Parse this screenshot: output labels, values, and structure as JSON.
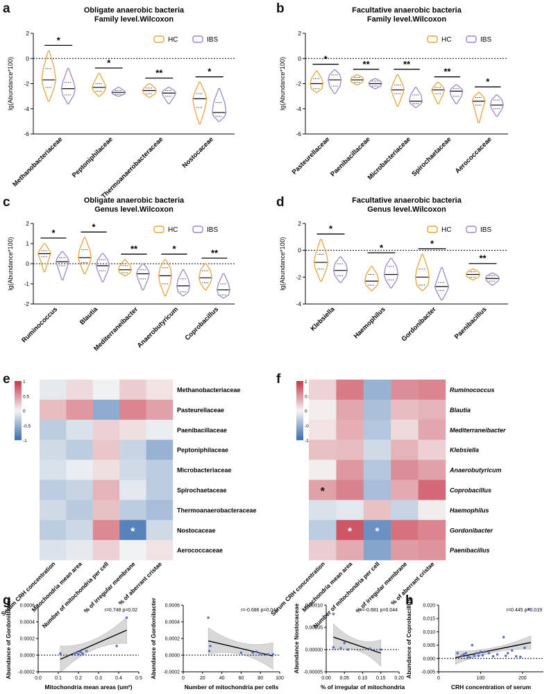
{
  "colors": {
    "hc": "#e8a33d",
    "ibs": "#9b86cf",
    "neg": "#3b6fb0",
    "pos": "#c83a4b",
    "mid": "#f5f5f5",
    "ci": "#cfcfcf",
    "point": "#5a72c8"
  },
  "panel_letters": [
    "a",
    "b",
    "c",
    "d",
    "e",
    "f",
    "g",
    "h"
  ],
  "legend": {
    "hc": "HC",
    "ibs": "IBS"
  },
  "chart_data": [
    {
      "panel": "a",
      "type": "violin",
      "title": "Obligate anaerobic bacteria",
      "subtitle": "Family level.Wilcoxon",
      "ylabel": "lg(Abundance*100)",
      "ylim": [
        -6,
        2
      ],
      "yticks": [
        2,
        0,
        -2,
        -4,
        -6
      ],
      "ref_line": 0,
      "categories": [
        "Methanobacteriaceae",
        "Peptoniphilaceae",
        "Thermoanaerobacteraceae",
        "Nostocaceae"
      ],
      "hc": [
        {
          "min": -3.4,
          "q1": -2.3,
          "median": -1.7,
          "q3": -0.8,
          "max": 0.6
        },
        {
          "min": -3.0,
          "q1": -2.6,
          "median": -2.3,
          "q3": -2.0,
          "max": -1.2
        },
        {
          "min": -3.1,
          "q1": -2.8,
          "median": -2.55,
          "q3": -2.35,
          "max": -2.0
        },
        {
          "min": -5.2,
          "q1": -3.9,
          "median": -3.2,
          "q3": -2.8,
          "max": -1.9
        }
      ],
      "ibs": [
        {
          "min": -3.6,
          "q1": -2.9,
          "median": -2.4,
          "q3": -1.9,
          "max": -0.8
        },
        {
          "min": -3.0,
          "q1": -2.85,
          "median": -2.7,
          "q3": -2.55,
          "max": -2.3
        },
        {
          "min": -3.6,
          "q1": -3.0,
          "median": -2.75,
          "q3": -2.55,
          "max": -2.3
        },
        {
          "min": -5.0,
          "q1": -4.6,
          "median": -4.3,
          "q3": -3.5,
          "max": -2.4
        }
      ],
      "significance": [
        "*",
        "*",
        "**",
        "*"
      ]
    },
    {
      "panel": "b",
      "type": "violin",
      "title": "Facultative anaerobic bacteria",
      "subtitle": "Family level.Wilcoxon",
      "ylabel": "lg(Abundance*100)",
      "ylim": [
        -6,
        2
      ],
      "yticks": [
        2,
        0,
        -2,
        -4,
        -6
      ],
      "ref_line": 0,
      "categories": [
        "Pasteurellaceae",
        "Paenibacillaceae",
        "Microbacteriaceae",
        "Spirochaetaceae",
        "Aerococcaceae"
      ],
      "hc": [
        {
          "min": -2.7,
          "q1": -2.4,
          "median": -2.0,
          "q3": -1.6,
          "max": -1.0
        },
        {
          "min": -2.1,
          "q1": -1.9,
          "median": -1.7,
          "q3": -1.5,
          "max": -1.3
        },
        {
          "min": -3.8,
          "q1": -2.8,
          "median": -2.5,
          "q3": -2.1,
          "max": -1.3
        },
        {
          "min": -3.6,
          "q1": -2.8,
          "median": -2.5,
          "q3": -2.3,
          "max": -1.9
        },
        {
          "min": -5.1,
          "q1": -3.7,
          "median": -3.4,
          "q3": -3.1,
          "max": -2.7
        }
      ],
      "ibs": [
        {
          "min": -2.8,
          "q1": -2.2,
          "median": -1.7,
          "q3": -1.3,
          "max": -0.9
        },
        {
          "min": -2.4,
          "q1": -2.2,
          "median": -2.0,
          "q3": -1.8,
          "max": -1.6
        },
        {
          "min": -3.9,
          "q1": -3.6,
          "median": -3.4,
          "q3": -2.9,
          "max": -2.3
        },
        {
          "min": -3.6,
          "q1": -3.0,
          "median": -2.6,
          "q3": -2.4,
          "max": -2.1
        },
        {
          "min": -4.6,
          "q1": -4.0,
          "median": -3.7,
          "q3": -3.3,
          "max": -2.9
        }
      ],
      "significance": [
        "*",
        "**",
        "**",
        "**",
        "*"
      ]
    },
    {
      "panel": "c",
      "type": "violin",
      "title": "Obligate anaerobic bacteria",
      "subtitle": "Genus level.Wilcoxon",
      "ylabel": "lg(Abundance*100)",
      "ylim": [
        -2,
        2
      ],
      "yticks": [
        2,
        1,
        0,
        -1,
        -2
      ],
      "ref_line": 0,
      "categories": [
        "Ruminococcus",
        "Blautia",
        "Mediterraneibacter",
        "Anaerobutyricum",
        "Coprobacillus"
      ],
      "hc": [
        {
          "min": -0.4,
          "q1": 0.35,
          "median": 0.5,
          "q3": 0.65,
          "max": 1.0
        },
        {
          "min": -0.5,
          "q1": 0.05,
          "median": 0.3,
          "q3": 0.7,
          "max": 1.3
        },
        {
          "min": -0.6,
          "q1": -0.45,
          "median": -0.3,
          "q3": -0.1,
          "max": 0.2
        },
        {
          "min": -1.6,
          "q1": -1.0,
          "median": -0.6,
          "q3": -0.2,
          "max": 0.2
        },
        {
          "min": -1.3,
          "q1": -0.95,
          "median": -0.7,
          "q3": -0.35,
          "max": 0.0
        }
      ],
      "ibs": [
        {
          "min": -0.8,
          "q1": -0.1,
          "median": 0.1,
          "q3": 0.3,
          "max": 0.6
        },
        {
          "min": -0.9,
          "q1": -0.35,
          "median": -0.1,
          "q3": 0.2,
          "max": 0.5
        },
        {
          "min": -1.3,
          "q1": -0.75,
          "median": -0.5,
          "q3": -0.3,
          "max": 0.0
        },
        {
          "min": -1.6,
          "q1": -1.4,
          "median": -1.1,
          "q3": -0.75,
          "max": -0.3
        },
        {
          "min": -1.7,
          "q1": -1.55,
          "median": -1.3,
          "q3": -1.0,
          "max": -0.5
        }
      ],
      "significance": [
        "*",
        "*",
        "**",
        "*",
        "**"
      ]
    },
    {
      "panel": "d",
      "type": "violin",
      "title": "Facultative anaerobic bacteria",
      "subtitle": "Genus level.Wilcoxon",
      "ylabel": "lg(Abundance*100)",
      "ylim": [
        -4,
        2
      ],
      "yticks": [
        2,
        0,
        -2,
        -4
      ],
      "ref_line": 0,
      "categories": [
        "Klebsiella",
        "Haemophilus",
        "Gordonibacter",
        "Paenibacillus"
      ],
      "hc": [
        {
          "min": -2.3,
          "q1": -1.4,
          "median": -0.9,
          "q3": -0.3,
          "max": 0.8
        },
        {
          "min": -3.0,
          "q1": -2.6,
          "median": -2.3,
          "q3": -1.8,
          "max": -1.2
        },
        {
          "min": -3.0,
          "q1": -2.6,
          "median": -2.0,
          "q3": -1.4,
          "max": -0.3
        },
        {
          "min": -2.2,
          "q1": -2.0,
          "median": -1.8,
          "q3": -1.6,
          "max": -1.4
        }
      ],
      "ibs": [
        {
          "min": -2.4,
          "q1": -1.9,
          "median": -1.5,
          "q3": -1.0,
          "max": -0.5
        },
        {
          "min": -2.8,
          "q1": -2.2,
          "median": -1.8,
          "q3": -1.2,
          "max": -0.6
        },
        {
          "min": -3.7,
          "q1": -3.0,
          "median": -2.7,
          "q3": -2.4,
          "max": -1.3
        },
        {
          "min": -2.6,
          "q1": -2.3,
          "median": -2.1,
          "q3": -1.9,
          "max": -1.7
        }
      ],
      "significance": [
        "*",
        "*",
        "*",
        "**"
      ]
    },
    {
      "panel": "e",
      "type": "heatmap",
      "scale": [
        -1,
        1
      ],
      "scale_ticks": [
        "1",
        "0.5",
        "0",
        "-0.5",
        "-1"
      ],
      "columns": [
        "Serum CRH concentration",
        "Mitochondria mean area",
        "Number of mitochondria per cell",
        "% of irregular membrane",
        "% of aberrant cristae"
      ],
      "rows": [
        "Methanobacteriaceae",
        "Pasteurellaceae",
        "Paenibacillaceae",
        "Peptoniphilaceae",
        "Microbacteriaceae",
        "Spirochaetaceae",
        "Thermoanaerobacteraceae",
        "Nostocaceae",
        "Aerococcaceae"
      ],
      "values": [
        [
          -0.08,
          0.15,
          -0.03,
          0.22,
          0.1
        ],
        [
          0.3,
          0.5,
          -0.55,
          0.6,
          0.45
        ],
        [
          -0.3,
          -0.15,
          0.2,
          0.12,
          -0.06
        ],
        [
          -0.2,
          -0.3,
          0.25,
          -0.25,
          -0.5
        ],
        [
          -0.15,
          -0.06,
          0.12,
          -0.2,
          -0.3
        ],
        [
          -0.3,
          -0.25,
          0.35,
          -0.1,
          -0.3
        ],
        [
          -0.2,
          -0.32,
          0.28,
          -0.3,
          -0.42
        ],
        [
          -0.3,
          -0.22,
          0.58,
          -0.85,
          -0.2
        ],
        [
          -0.14,
          -0.08,
          0.2,
          -0.02,
          0.1
        ]
      ],
      "marks": [
        {
          "row": 7,
          "col": 3,
          "label": "*",
          "color": "white"
        }
      ]
    },
    {
      "panel": "f",
      "type": "heatmap",
      "scale": [
        -1,
        1
      ],
      "scale_ticks": [
        "1",
        "0.5",
        "0",
        "-0.5",
        "-1"
      ],
      "columns": [
        "Serum CRH concentration",
        "Mitochondria mean area",
        "Number of mitochondria per cell",
        "% of irregular membrane",
        "% of aberrant cristae"
      ],
      "rows": [
        "Ruminococcus",
        "Blautia",
        "Mediterraneibacter",
        "Klebsiella",
        "Anaerobutyricum",
        "Coprobacillus",
        "Haemophilus",
        "Gordonibacter",
        "Paenibacillus"
      ],
      "values": [
        [
          0.18,
          0.65,
          -0.5,
          0.55,
          0.6
        ],
        [
          0.04,
          0.42,
          -0.4,
          0.3,
          0.35
        ],
        [
          0.1,
          0.38,
          -0.35,
          0.15,
          0.42
        ],
        [
          0.28,
          0.3,
          -0.2,
          0.35,
          0.2
        ],
        [
          0.04,
          0.5,
          -0.35,
          0.55,
          0.45
        ],
        [
          0.45,
          0.62,
          -0.42,
          0.4,
          0.75
        ],
        [
          -0.15,
          -0.1,
          0.28,
          -0.25,
          0.05
        ],
        [
          -0.3,
          0.85,
          -0.75,
          0.7,
          0.6
        ],
        [
          0.22,
          0.4,
          -0.6,
          0.48,
          0.52
        ]
      ],
      "marks": [
        {
          "row": 5,
          "col": 0,
          "label": "*",
          "color": "black"
        },
        {
          "row": 7,
          "col": 1,
          "label": "*",
          "color": "white"
        },
        {
          "row": 7,
          "col": 2,
          "label": "*",
          "color": "white"
        }
      ]
    },
    {
      "panel": "g1",
      "type": "scatter",
      "stat": "r=0.748 p=0.02",
      "xlabel": "Mitochondria mean areas (um²)",
      "ylabel": "Abundance of Gordonibacter",
      "xlim": [
        0.0,
        0.5
      ],
      "xticks": [
        0.0,
        0.1,
        0.2,
        0.3,
        0.4,
        0.5
      ],
      "xtick_labels": [
        "0.0",
        "0.1",
        "0.2",
        "0.3",
        "0.4",
        "0.5"
      ],
      "ylim": [
        -0.0002,
        0.0006
      ],
      "yticks": [
        -0.0002,
        0.0,
        0.0002,
        0.0004,
        0.0006
      ],
      "ytick_labels": [
        "-0.0002",
        "0.0000",
        "0.0002",
        "0.0004",
        "0.0006"
      ],
      "points": [
        [
          0.11,
          2e-05
        ],
        [
          0.18,
          2e-05
        ],
        [
          0.19,
          3e-05
        ],
        [
          0.2,
          1e-05
        ],
        [
          0.21,
          4e-05
        ],
        [
          0.22,
          2e-05
        ],
        [
          0.24,
          5e-05
        ],
        [
          0.39,
          0.00011
        ],
        [
          0.44,
          0.00045
        ]
      ],
      "fit": [
        [
          0.11,
          -5e-05
        ],
        [
          0.44,
          0.0003
        ]
      ],
      "ci_halfwidth_ends": 0.00016,
      "ci_halfwidth_mid": 6e-05
    },
    {
      "panel": "g2",
      "type": "scatter",
      "stat": "r=-0.686 p=0.041",
      "xlabel": "Number of mitochondria per cells",
      "ylabel": "Abundance of Gordonibacter",
      "xlim": [
        0,
        100
      ],
      "xticks": [
        0,
        20,
        40,
        60,
        80,
        100
      ],
      "xtick_labels": [
        "0",
        "20",
        "40",
        "60",
        "80",
        "100"
      ],
      "ylim": [
        -0.0002,
        0.0006
      ],
      "yticks": [
        -0.0002,
        0.0,
        0.0002,
        0.0004,
        0.0006
      ],
      "ytick_labels": [
        "-0.0002",
        "0.0000",
        "0.0002",
        "0.0004",
        "0.0006"
      ],
      "points": [
        [
          26,
          0.00045
        ],
        [
          27,
          5e-05
        ],
        [
          28,
          0.00011
        ],
        [
          60,
          3e-05
        ],
        [
          72,
          3e-05
        ],
        [
          76,
          4e-05
        ],
        [
          80,
          2e-05
        ],
        [
          88,
          1e-05
        ],
        [
          93,
          1e-05
        ]
      ],
      "fit": [
        [
          26,
          0.00017
        ],
        [
          93,
          -1e-05
        ]
      ],
      "ci_halfwidth_ends": 0.00016,
      "ci_halfwidth_mid": 7e-05
    },
    {
      "panel": "g3",
      "type": "scatter",
      "stat": "r=-0.681 p=0.044",
      "xlabel": "% of irregular of mitochondria",
      "ylabel": "Abundance Nostocaceae",
      "xlim": [
        0.0,
        0.2
      ],
      "xticks": [
        0.0,
        0.05,
        0.1,
        0.15,
        0.2
      ],
      "xtick_labels": [
        "0.00",
        "0.05",
        "0.10",
        "0.15",
        "0.20"
      ],
      "ylim": [
        -5e-05,
        0.0001
      ],
      "yticks": [
        -5e-05,
        0.0,
        5e-05,
        0.0001
      ],
      "ytick_labels": [
        "-0.00005",
        "0.00000",
        "0.00005",
        "0.00010"
      ],
      "points": [
        [
          0.02,
          8e-05
        ],
        [
          0.02,
          5e-06
        ],
        [
          0.04,
          3e-06
        ],
        [
          0.05,
          1.5e-05
        ],
        [
          0.06,
          0.0
        ],
        [
          0.12,
          2e-06
        ],
        [
          0.15,
          0.0
        ]
      ],
      "fit": [
        [
          0.02,
          2.8e-05
        ],
        [
          0.15,
          -8e-06
        ]
      ],
      "ci_halfwidth_ends": 3e-05,
      "ci_halfwidth_mid": 1.2e-05
    },
    {
      "panel": "h",
      "type": "scatter",
      "stat": "r=0.445 p=0.019",
      "xlabel": "CRH concentration of serum",
      "ylabel": "Abundance of  Coprobacillus",
      "xlim": [
        0,
        250
      ],
      "xticks": [
        0,
        100,
        200
      ],
      "xtick_labels": [
        "0",
        "100",
        "200"
      ],
      "ylim": [
        -0.005,
        0.02
      ],
      "yticks": [
        -0.005,
        0.0,
        0.005,
        0.01,
        0.015,
        0.02
      ],
      "ytick_labels": [
        "-0.005",
        "0.000",
        "0.005",
        "0.010",
        "0.015",
        "0.020"
      ],
      "points": [
        [
          45,
          0.002
        ],
        [
          55,
          0.001
        ],
        [
          60,
          0.0015
        ],
        [
          65,
          0.002
        ],
        [
          70,
          0.0005
        ],
        [
          75,
          0.0003
        ],
        [
          80,
          0.005
        ],
        [
          85,
          0.001
        ],
        [
          90,
          0.002
        ],
        [
          95,
          0.001
        ],
        [
          100,
          0.0025
        ],
        [
          105,
          0.0012
        ],
        [
          110,
          0.0025
        ],
        [
          120,
          0.002
        ],
        [
          130,
          0.0008
        ],
        [
          140,
          0.0015
        ],
        [
          155,
          0.008
        ],
        [
          160,
          0.001
        ],
        [
          165,
          0.002
        ],
        [
          175,
          0.003
        ],
        [
          185,
          0.0008
        ],
        [
          195,
          0.0006
        ],
        [
          205,
          0.004
        ],
        [
          215,
          0.0185
        ]
      ],
      "fit": [
        [
          40,
          0.0003
        ],
        [
          220,
          0.006
        ]
      ],
      "ci_halfwidth_ends": 0.0025,
      "ci_halfwidth_mid": 0.0009
    }
  ]
}
